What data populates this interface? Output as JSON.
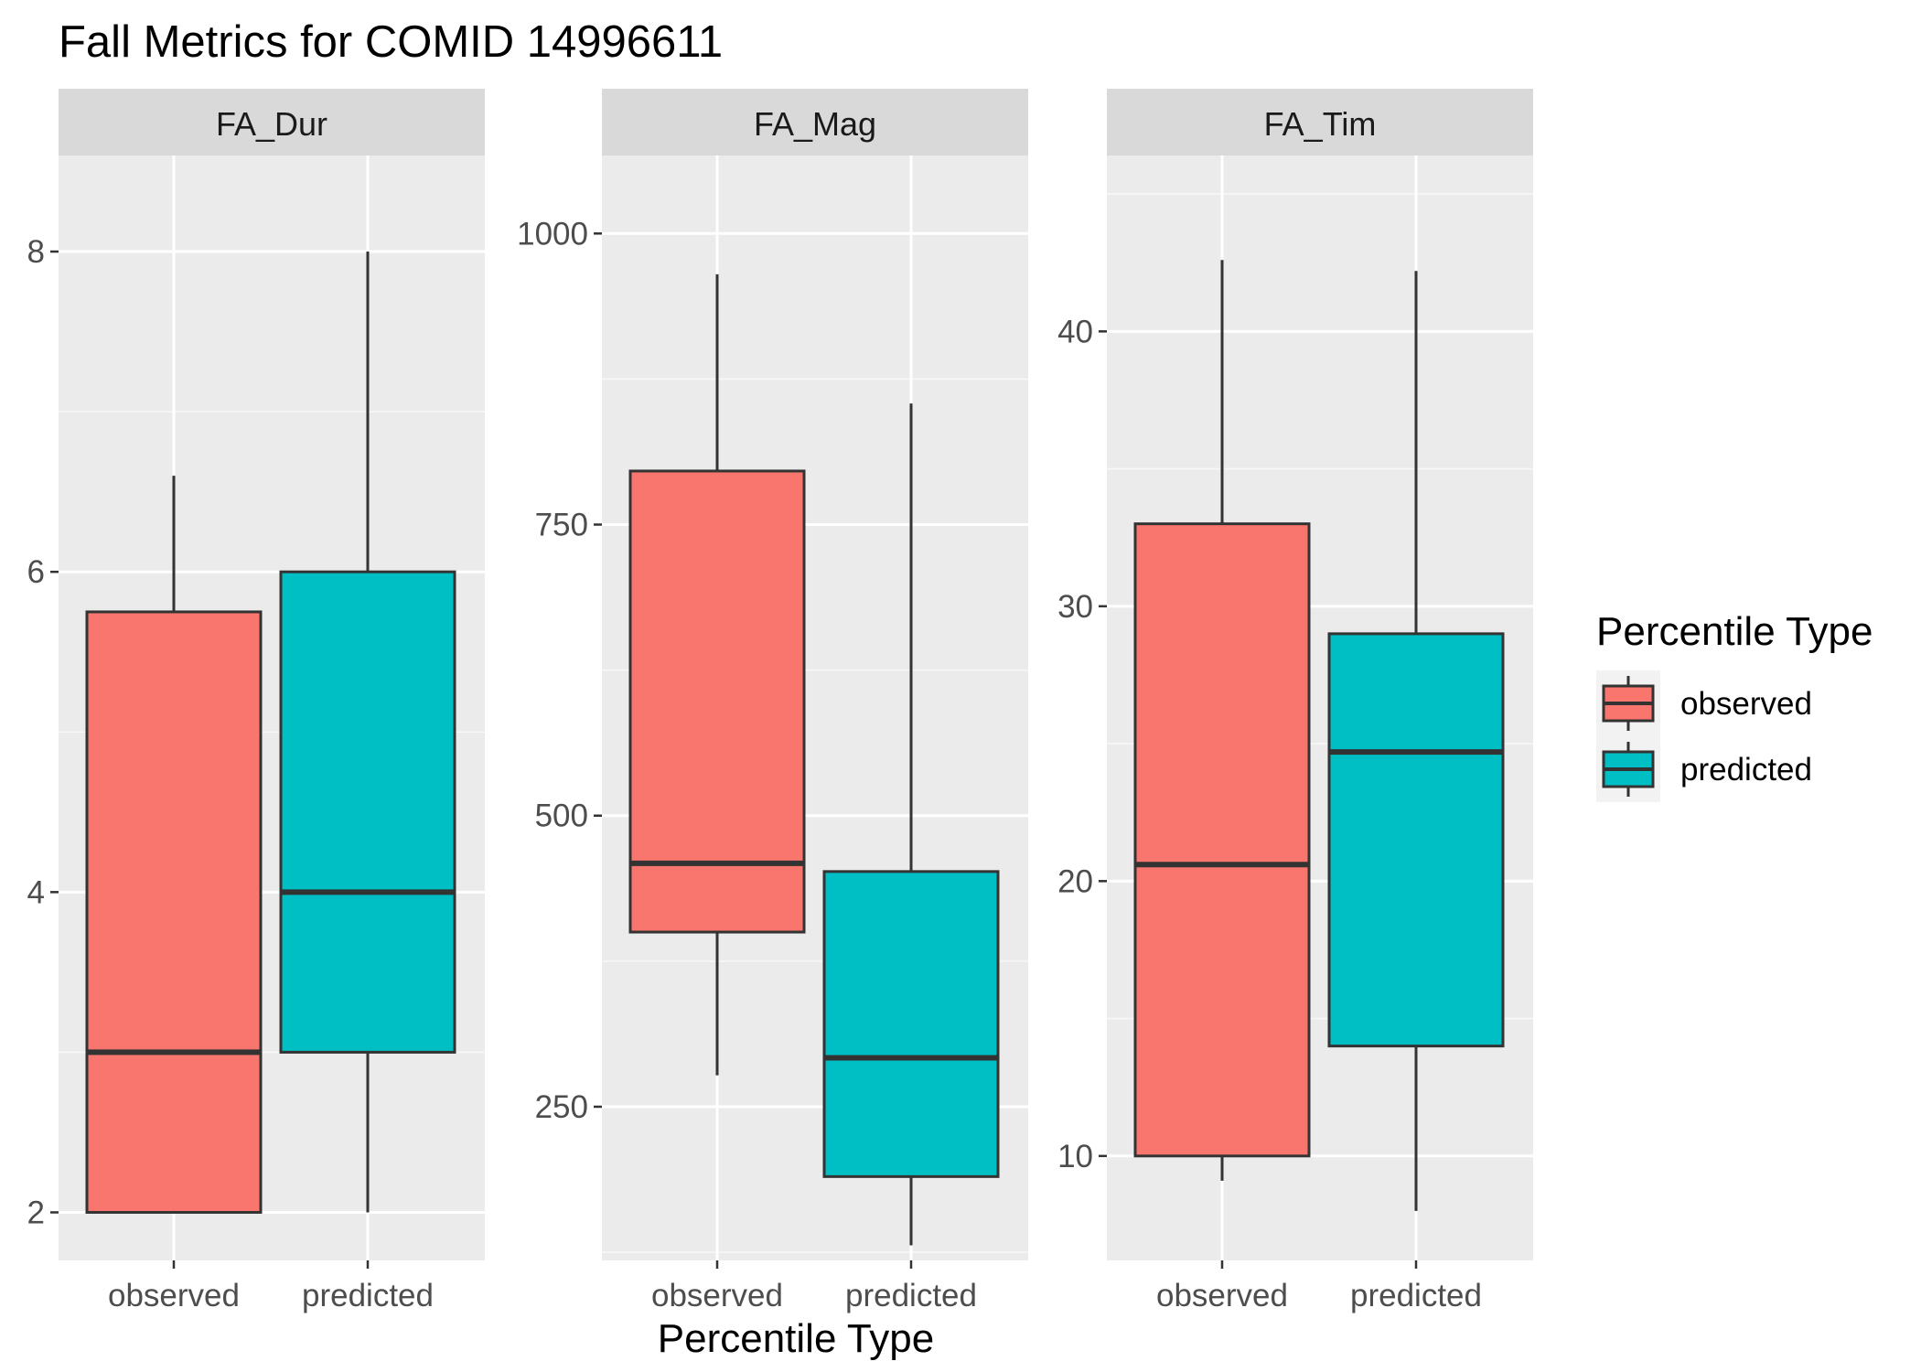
{
  "chart_data": {
    "type": "boxplot",
    "title": "Fall Metrics for COMID 14996611",
    "xlabel": "Percentile Type",
    "categories": [
      "observed",
      "predicted"
    ],
    "colors": {
      "observed": "#F8766D",
      "predicted": "#00BFC4"
    },
    "legend": {
      "title": "Percentile Type",
      "position": "right",
      "entries": [
        "observed",
        "predicted"
      ]
    },
    "grid": true,
    "facets": [
      {
        "name": "FA_Dur",
        "ylim": [
          1.7,
          8.6
        ],
        "yticks": [
          2,
          4,
          6,
          8
        ],
        "boxes": [
          {
            "category": "observed",
            "min": 2,
            "q1": 2,
            "median": 3,
            "q3": 5.75,
            "max": 6.6
          },
          {
            "category": "predicted",
            "min": 2,
            "q1": 3,
            "median": 4,
            "q3": 6,
            "max": 8
          }
        ]
      },
      {
        "name": "FA_Mag",
        "ylim": [
          118,
          1067
        ],
        "yticks": [
          250,
          500,
          750,
          1000
        ],
        "boxes": [
          {
            "category": "observed",
            "min": 277,
            "q1": 400,
            "median": 459,
            "q3": 796,
            "max": 965
          },
          {
            "category": "predicted",
            "min": 131,
            "q1": 190,
            "median": 292,
            "q3": 452,
            "max": 854
          }
        ]
      },
      {
        "name": "FA_Tim",
        "ylim": [
          6.2,
          46.4
        ],
        "yticks": [
          10,
          20,
          30,
          40
        ],
        "boxes": [
          {
            "category": "observed",
            "min": 9.1,
            "q1": 10,
            "median": 20.6,
            "q3": 33,
            "max": 42.6
          },
          {
            "category": "predicted",
            "min": 8,
            "q1": 14,
            "median": 24.7,
            "q3": 29,
            "max": 42.2
          }
        ]
      }
    ]
  }
}
